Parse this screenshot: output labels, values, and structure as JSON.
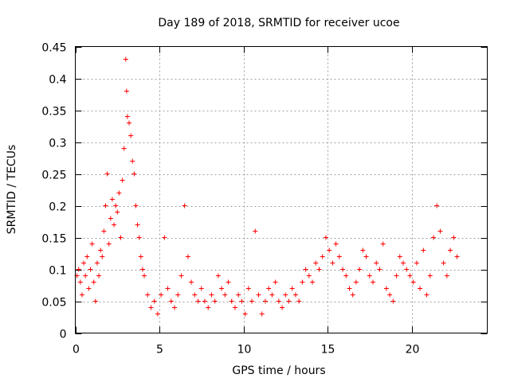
{
  "chart_data": {
    "type": "scatter",
    "title": "Day 189 of 2018, SRMTID for receiver ucoe",
    "xlabel": "GPS time / hours",
    "ylabel": "SRMTID / TECUs",
    "xlim": [
      0,
      24.5
    ],
    "ylim": [
      0,
      0.45
    ],
    "xticks": [
      0,
      5,
      10,
      15,
      20
    ],
    "xtick_labels": [
      "0",
      "5",
      "10",
      "15",
      "20"
    ],
    "yticks": [
      0,
      0.05,
      0.1,
      0.15,
      0.2,
      0.25,
      0.3,
      0.35,
      0.4,
      0.45
    ],
    "ytick_labels": [
      "0",
      "0.05",
      "0.1",
      "0.15",
      "0.2",
      "0.25",
      "0.3",
      "0.35",
      "0.4",
      "0.45"
    ],
    "grid": true,
    "marker": "+",
    "marker_color": "#ff0000",
    "series": [
      {
        "name": "SRMTID",
        "points": [
          [
            0.1,
            0.09
          ],
          [
            0.2,
            0.1
          ],
          [
            0.3,
            0.08
          ],
          [
            0.4,
            0.06
          ],
          [
            0.5,
            0.11
          ],
          [
            0.6,
            0.09
          ],
          [
            0.7,
            0.12
          ],
          [
            0.8,
            0.07
          ],
          [
            0.9,
            0.1
          ],
          [
            1.0,
            0.14
          ],
          [
            1.1,
            0.08
          ],
          [
            1.2,
            0.05
          ],
          [
            1.3,
            0.11
          ],
          [
            1.4,
            0.09
          ],
          [
            1.5,
            0.13
          ],
          [
            1.6,
            0.12
          ],
          [
            1.7,
            0.16
          ],
          [
            1.8,
            0.2
          ],
          [
            1.9,
            0.25
          ],
          [
            2.0,
            0.14
          ],
          [
            2.1,
            0.18
          ],
          [
            2.2,
            0.21
          ],
          [
            2.3,
            0.17
          ],
          [
            2.4,
            0.2
          ],
          [
            2.5,
            0.19
          ],
          [
            2.6,
            0.22
          ],
          [
            2.7,
            0.15
          ],
          [
            2.8,
            0.24
          ],
          [
            2.9,
            0.29
          ],
          [
            3.0,
            0.43
          ],
          [
            3.05,
            0.38
          ],
          [
            3.1,
            0.34
          ],
          [
            3.2,
            0.33
          ],
          [
            3.3,
            0.31
          ],
          [
            3.4,
            0.27
          ],
          [
            3.5,
            0.25
          ],
          [
            3.6,
            0.2
          ],
          [
            3.7,
            0.17
          ],
          [
            3.8,
            0.15
          ],
          [
            3.9,
            0.12
          ],
          [
            4.0,
            0.1
          ],
          [
            4.1,
            0.09
          ],
          [
            4.3,
            0.06
          ],
          [
            4.5,
            0.04
          ],
          [
            4.7,
            0.05
          ],
          [
            4.9,
            0.03
          ],
          [
            5.1,
            0.06
          ],
          [
            5.3,
            0.15
          ],
          [
            5.5,
            0.07
          ],
          [
            5.7,
            0.05
          ],
          [
            5.9,
            0.04
          ],
          [
            6.1,
            0.06
          ],
          [
            6.3,
            0.09
          ],
          [
            6.5,
            0.2
          ],
          [
            6.7,
            0.12
          ],
          [
            6.9,
            0.08
          ],
          [
            7.1,
            0.06
          ],
          [
            7.3,
            0.05
          ],
          [
            7.5,
            0.07
          ],
          [
            7.7,
            0.05
          ],
          [
            7.9,
            0.04
          ],
          [
            8.1,
            0.06
          ],
          [
            8.3,
            0.05
          ],
          [
            8.5,
            0.09
          ],
          [
            8.7,
            0.07
          ],
          [
            8.9,
            0.06
          ],
          [
            9.1,
            0.08
          ],
          [
            9.3,
            0.05
          ],
          [
            9.5,
            0.04
          ],
          [
            9.7,
            0.06
          ],
          [
            9.9,
            0.05
          ],
          [
            10.1,
            0.03
          ],
          [
            10.3,
            0.07
          ],
          [
            10.5,
            0.05
          ],
          [
            10.7,
            0.16
          ],
          [
            10.9,
            0.06
          ],
          [
            11.1,
            0.03
          ],
          [
            11.3,
            0.05
          ],
          [
            11.5,
            0.07
          ],
          [
            11.7,
            0.06
          ],
          [
            11.9,
            0.08
          ],
          [
            12.1,
            0.05
          ],
          [
            12.3,
            0.04
          ],
          [
            12.5,
            0.06
          ],
          [
            12.7,
            0.05
          ],
          [
            12.9,
            0.07
          ],
          [
            13.1,
            0.06
          ],
          [
            13.3,
            0.05
          ],
          [
            13.5,
            0.08
          ],
          [
            13.7,
            0.1
          ],
          [
            13.9,
            0.09
          ],
          [
            14.1,
            0.08
          ],
          [
            14.3,
            0.11
          ],
          [
            14.5,
            0.1
          ],
          [
            14.7,
            0.12
          ],
          [
            14.9,
            0.15
          ],
          [
            15.1,
            0.13
          ],
          [
            15.3,
            0.11
          ],
          [
            15.5,
            0.14
          ],
          [
            15.7,
            0.12
          ],
          [
            15.9,
            0.1
          ],
          [
            16.1,
            0.09
          ],
          [
            16.3,
            0.07
          ],
          [
            16.5,
            0.06
          ],
          [
            16.7,
            0.08
          ],
          [
            16.9,
            0.1
          ],
          [
            17.1,
            0.13
          ],
          [
            17.3,
            0.12
          ],
          [
            17.5,
            0.09
          ],
          [
            17.7,
            0.08
          ],
          [
            17.9,
            0.11
          ],
          [
            18.1,
            0.1
          ],
          [
            18.3,
            0.14
          ],
          [
            18.5,
            0.07
          ],
          [
            18.7,
            0.06
          ],
          [
            18.9,
            0.05
          ],
          [
            19.1,
            0.09
          ],
          [
            19.3,
            0.12
          ],
          [
            19.5,
            0.11
          ],
          [
            19.7,
            0.1
          ],
          [
            19.9,
            0.09
          ],
          [
            20.1,
            0.08
          ],
          [
            20.3,
            0.11
          ],
          [
            20.5,
            0.07
          ],
          [
            20.7,
            0.13
          ],
          [
            20.9,
            0.06
          ],
          [
            21.1,
            0.09
          ],
          [
            21.3,
            0.15
          ],
          [
            21.5,
            0.2
          ],
          [
            21.7,
            0.16
          ],
          [
            21.9,
            0.11
          ],
          [
            22.1,
            0.09
          ],
          [
            22.3,
            0.13
          ],
          [
            22.5,
            0.15
          ],
          [
            22.7,
            0.12
          ]
        ]
      }
    ]
  }
}
